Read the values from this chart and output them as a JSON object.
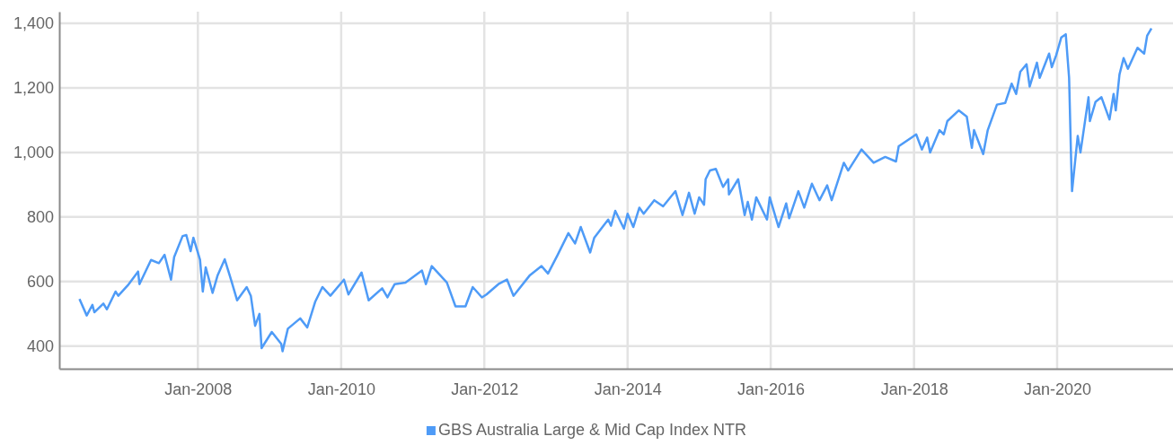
{
  "chart_data": {
    "type": "line",
    "legend": "bottom",
    "grid": true,
    "xlim": [
      "2006-01-24",
      "2021-08-14"
    ],
    "xticks": [
      {
        "value": "2008-01-01",
        "label": "Jan-2008"
      },
      {
        "value": "2010-01-01",
        "label": "Jan-2010"
      },
      {
        "value": "2012-01-01",
        "label": "Jan-2012"
      },
      {
        "value": "2014-01-01",
        "label": "Jan-2014"
      },
      {
        "value": "2016-01-01",
        "label": "Jan-2016"
      },
      {
        "value": "2018-01-01",
        "label": "Jan-2018"
      },
      {
        "value": "2020-01-01",
        "label": "Jan-2020"
      }
    ],
    "ylim": [
      330,
      1436
    ],
    "yticks": [
      {
        "value": 400,
        "label": "400"
      },
      {
        "value": 600,
        "label": "600"
      },
      {
        "value": 800,
        "label": "800"
      },
      {
        "value": 1000,
        "label": "1,000"
      },
      {
        "value": 1200,
        "label": "1,200"
      },
      {
        "value": 1400,
        "label": "1,400"
      }
    ],
    "x": [
      "2006-05-07",
      "2006-06-13",
      "2006-07-12",
      "2006-07-22",
      "2006-09-06",
      "2006-09-24",
      "2006-11-07",
      "2006-11-21",
      "2007-01-08",
      "2007-03-02",
      "2007-03-09",
      "2007-05-07",
      "2007-06-16",
      "2007-07-15",
      "2007-08-17",
      "2007-09-02",
      "2007-10-15",
      "2007-11-03",
      "2007-11-25",
      "2007-12-09",
      "2008-01-12",
      "2008-01-26",
      "2008-02-10",
      "2008-03-16",
      "2008-04-11",
      "2008-05-17",
      "2008-06-20",
      "2008-07-19",
      "2008-09-06",
      "2008-09-27",
      "2008-10-19",
      "2008-11-10",
      "2008-11-21",
      "2009-01-12",
      "2009-03-01",
      "2009-03-08",
      "2009-04-04",
      "2009-06-06",
      "2009-07-12",
      "2009-08-21",
      "2009-09-27",
      "2009-11-07",
      "2010-01-15",
      "2010-02-07",
      "2010-04-15",
      "2010-05-21",
      "2010-07-29",
      "2010-08-25",
      "2010-10-01",
      "2010-11-25",
      "2011-02-17",
      "2011-03-09",
      "2011-04-08",
      "2011-06-24",
      "2011-08-07",
      "2011-09-27",
      "2011-11-03",
      "2011-12-20",
      "2012-01-12",
      "2012-03-13",
      "2012-04-26",
      "2012-05-29",
      "2012-08-21",
      "2012-10-19",
      "2012-11-21",
      "2013-01-08",
      "2013-03-05",
      "2013-04-08",
      "2013-05-07",
      "2013-06-24",
      "2013-07-15",
      "2013-09-24",
      "2013-10-08",
      "2013-10-30",
      "2013-12-13",
      "2014-01-01",
      "2014-01-30",
      "2014-03-02",
      "2014-03-24",
      "2014-05-17",
      "2014-07-01",
      "2014-09-02",
      "2014-10-08",
      "2014-11-10",
      "2014-12-09",
      "2015-01-01",
      "2015-01-26",
      "2015-02-03",
      "2015-02-25",
      "2015-03-27",
      "2015-05-03",
      "2015-05-29",
      "2015-06-02",
      "2015-07-19",
      "2015-08-21",
      "2015-09-06",
      "2015-09-27",
      "2015-10-19",
      "2015-12-13",
      "2015-12-27",
      "2016-02-10",
      "2016-03-20",
      "2016-04-04",
      "2016-05-21",
      "2016-06-20",
      "2016-07-29",
      "2016-09-06",
      "2016-10-15",
      "2016-11-07",
      "2017-01-08",
      "2017-01-30",
      "2017-04-08",
      "2017-06-09",
      "2017-08-07",
      "2017-10-01",
      "2017-10-15",
      "2018-01-12",
      "2018-02-10",
      "2018-03-09",
      "2018-03-24",
      "2018-05-11",
      "2018-06-02",
      "2018-06-20",
      "2018-08-17",
      "2018-09-27",
      "2018-10-23",
      "2018-11-03",
      "2018-12-20",
      "2019-01-12",
      "2019-02-28",
      "2019-04-11",
      "2019-05-14",
      "2019-06-06",
      "2019-06-27",
      "2019-07-29",
      "2019-08-14",
      "2019-09-20",
      "2019-10-04",
      "2019-11-21",
      "2019-12-05",
      "2019-12-27",
      "2020-01-22",
      "2020-02-14",
      "2020-03-02",
      "2020-03-13",
      "2020-03-17",
      "2020-04-15",
      "2020-04-29",
      "2020-06-09",
      "2020-06-16",
      "2020-07-15",
      "2020-08-14",
      "2020-09-24",
      "2020-10-15",
      "2020-10-26",
      "2020-11-14",
      "2020-12-05",
      "2020-12-27",
      "2021-02-14",
      "2021-03-20",
      "2021-04-04",
      "2021-04-26"
    ],
    "series": [
      {
        "name": "GBS Australia Large & Mid Cap Index NTR",
        "color": "#4e9bf7",
        "values": [
          546,
          495,
          528,
          505,
          532,
          514,
          569,
          556,
          588,
          631,
          592,
          667,
          657,
          683,
          606,
          676,
          741,
          744,
          694,
          736,
          667,
          569,
          644,
          565,
          620,
          669,
          602,
          542,
          583,
          556,
          463,
          500,
          394,
          444,
          407,
          384,
          454,
          486,
          458,
          537,
          583,
          556,
          606,
          560,
          628,
          542,
          579,
          551,
          592,
          597,
          634,
          592,
          648,
          597,
          523,
          523,
          583,
          551,
          560,
          592,
          606,
          556,
          620,
          648,
          625,
          681,
          750,
          718,
          769,
          690,
          736,
          792,
          773,
          819,
          764,
          810,
          769,
          829,
          810,
          852,
          833,
          880,
          806,
          875,
          810,
          861,
          838,
          917,
          944,
          949,
          893,
          917,
          870,
          917,
          806,
          847,
          792,
          861,
          792,
          861,
          769,
          842,
          796,
          880,
          829,
          903,
          852,
          898,
          852,
          968,
          944,
          1009,
          968,
          986,
          972,
          1019,
          1056,
          1009,
          1046,
          1000,
          1069,
          1056,
          1097,
          1130,
          1111,
          1014,
          1069,
          995,
          1069,
          1148,
          1153,
          1213,
          1181,
          1250,
          1273,
          1204,
          1278,
          1231,
          1306,
          1264,
          1301,
          1356,
          1366,
          1231,
          963,
          880,
          1051,
          1000,
          1171,
          1097,
          1157,
          1171,
          1102,
          1181,
          1130,
          1241,
          1292,
          1259,
          1324,
          1306,
          1361,
          1384
        ]
      }
    ]
  }
}
